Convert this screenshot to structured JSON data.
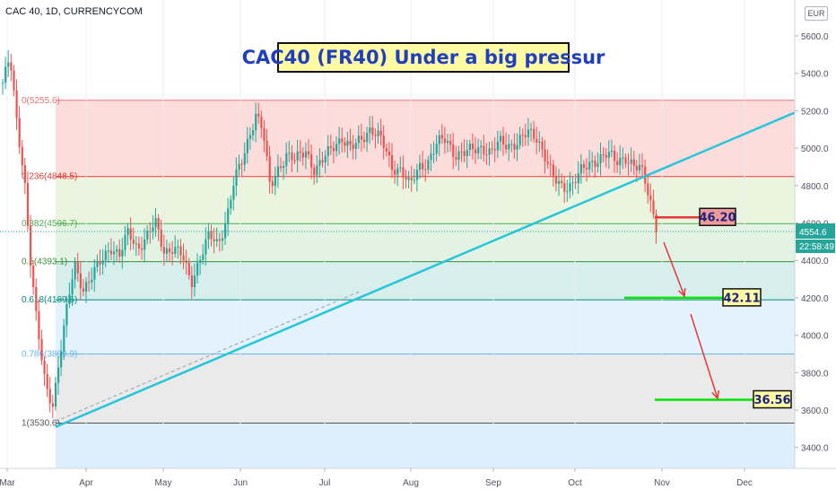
{
  "header": {
    "symbol": "CAC 40, 1D, CURRENCYCOM",
    "title": "CAC40 (FR40) Under a big pressur",
    "currency": "EUR"
  },
  "chart_data": {
    "type": "candlestick",
    "ylim": [
      3200,
      5700
    ],
    "y_ticks": [
      "5600.0",
      "5400.0",
      "5200.0",
      "5000.0",
      "4800.0",
      "4600.0",
      "4400.0",
      "4200.0",
      "4000.0",
      "3800.0",
      "3600.0",
      "3400.0"
    ],
    "x_ticks": [
      "Mar",
      "Apr",
      "May",
      "Jun",
      "Jul",
      "Aug",
      "Sep",
      "Oct",
      "Nov",
      "Dec"
    ],
    "fib_levels": [
      {
        "label": "0(5255.6)",
        "value": 5255.6,
        "color": "#e57373"
      },
      {
        "label": "0.236(4848.5)",
        "value": 4848.5,
        "color": "#e53935"
      },
      {
        "label": "0.382(4596.7)",
        "value": 4596.7,
        "color": "#4caf50"
      },
      {
        "label": "0.5(4393.1)",
        "value": 4393.1,
        "color": "#388e3c"
      },
      {
        "label": "0.618(4189.6)",
        "value": 4189.6,
        "color": "#00897b"
      },
      {
        "label": "0.786(3899.9)",
        "value": 3899.9,
        "color": "#64b5f6"
      },
      {
        "label": "1(3530.6)",
        "value": 3530.6,
        "color": "#555555"
      }
    ],
    "last_price": "4554.6",
    "countdown": "22:58:49",
    "annotations": [
      {
        "label": "46.20",
        "price": 4630
      },
      {
        "label": "42.11",
        "price": 4200
      },
      {
        "label": "36.56",
        "price": 3655
      }
    ],
    "colors": {
      "up": "#26a69a",
      "down": "#ef5350",
      "trend": "#26c6da",
      "target": "#00e600",
      "arrow": "#e53935"
    }
  }
}
